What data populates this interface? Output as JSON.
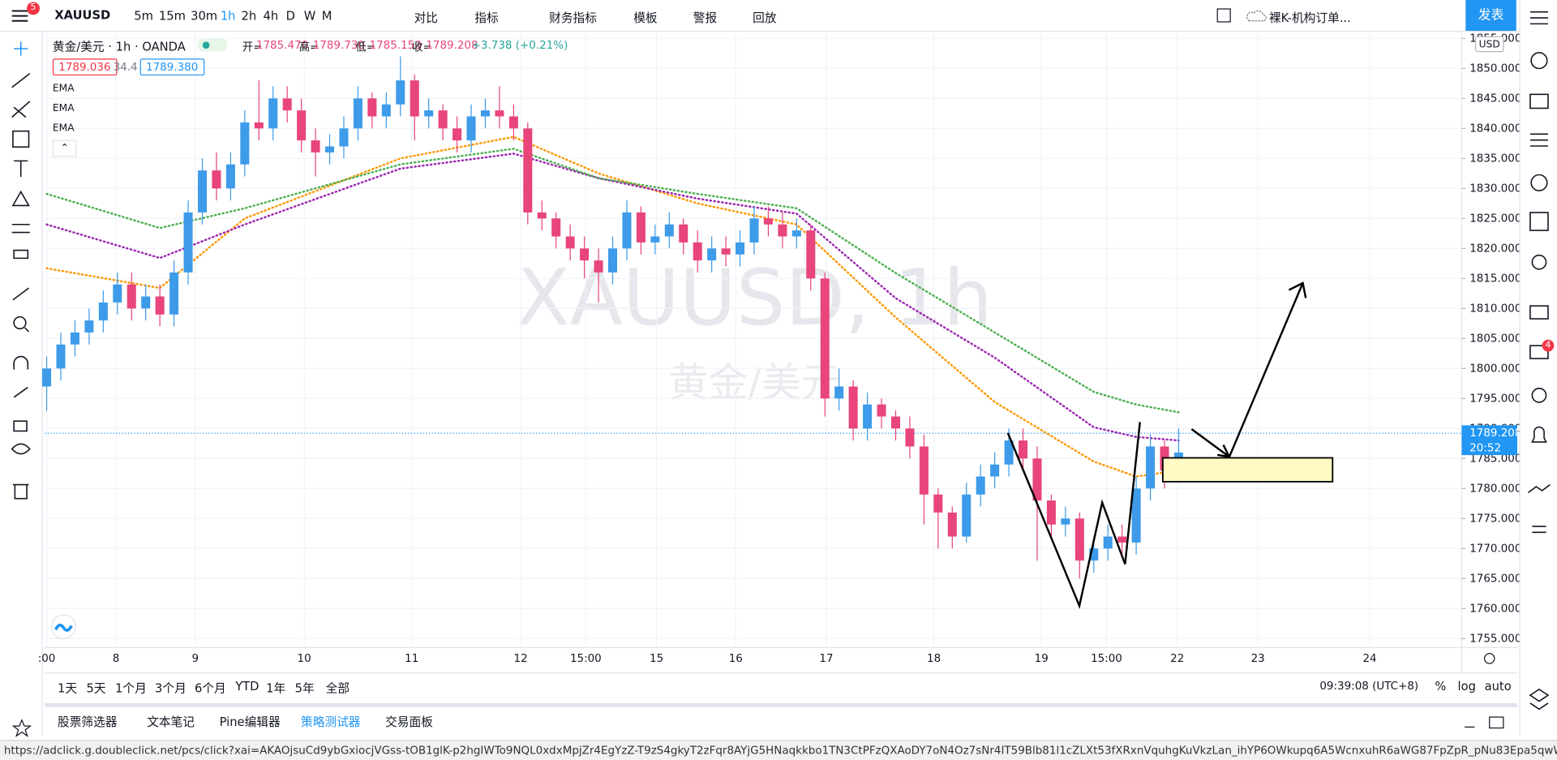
{
  "toolbar": {
    "symbol": "XAUUSD",
    "notification_count": "5",
    "intervals": [
      "5m",
      "15m",
      "30m",
      "1h",
      "2h",
      "4h",
      "D",
      "W",
      "M"
    ],
    "buttons": [
      "对比",
      "指标",
      "财务指标",
      "模板",
      "警报",
      "回放"
    ],
    "layout_name": "裸K-机构订单...",
    "publish": "发表"
  },
  "legend": {
    "title": "黄金/美元 · 1h · OANDA",
    "ohlc": [
      {
        "label": "开=",
        "value": "1785.470"
      },
      {
        "label": "高=",
        "value": "1789.730"
      },
      {
        "label": "低=",
        "value": "1785.150"
      },
      {
        "label": "收=",
        "value": "1789.208"
      }
    ],
    "change": "+3.738 (+0.21%)",
    "bid": "1789.036",
    "spread": "34.4",
    "ask": "1789.380",
    "indicators": [
      "EMA",
      "EMA",
      "EMA"
    ]
  },
  "sidebar_badge": "4",
  "chart_data": {
    "type": "candlestick",
    "watermark": "XAUUSD, 1h",
    "watermark_sub": "黄金/美元",
    "currency": "USD",
    "up_color": "#3d9be9",
    "down_color": "#e8457a",
    "candles": {
      "open": [
        1797,
        1800,
        1804,
        1806,
        1808,
        1811,
        1814,
        1810,
        1812,
        1809,
        1816,
        1826,
        1833,
        1830,
        1834,
        1841,
        1840,
        1845,
        1843,
        1838,
        1836,
        1837,
        1840,
        1845,
        1842,
        1844,
        1848,
        1842,
        1843,
        1840,
        1838,
        1842,
        1843,
        1842,
        1840,
        1826,
        1825,
        1822,
        1820,
        1818,
        1816,
        1820,
        1826,
        1821,
        1822,
        1824,
        1821,
        1818,
        1820,
        1819,
        1821,
        1825,
        1824,
        1822,
        1823,
        1815,
        1795,
        1797,
        1790,
        1794,
        1792,
        1790,
        1787,
        1779,
        1776,
        1772,
        1779,
        1782,
        1784,
        1788,
        1785,
        1778,
        1774,
        1775,
        1768,
        1770,
        1772,
        1771,
        1780,
        1787,
        1783
      ],
      "high": [
        1802,
        1806,
        1808,
        1810,
        1813,
        1816,
        1816,
        1814,
        1814,
        1818,
        1828,
        1835,
        1836,
        1836,
        1843,
        1848,
        1847,
        1847,
        1845,
        1840,
        1839,
        1842,
        1847,
        1846,
        1846,
        1852,
        1849,
        1845,
        1844,
        1842,
        1844,
        1845,
        1847,
        1844,
        1841,
        1828,
        1826,
        1824,
        1822,
        1820,
        1822,
        1828,
        1827,
        1824,
        1826,
        1825,
        1823,
        1822,
        1822,
        1823,
        1827,
        1827,
        1826,
        1825,
        1824,
        1816,
        1800,
        1798,
        1796,
        1795,
        1793,
        1792,
        1789,
        1780,
        1777,
        1781,
        1784,
        1786,
        1790,
        1790,
        1787,
        1779,
        1777,
        1776,
        1772,
        1774,
        1774,
        1782,
        1789,
        1788,
        1790
      ],
      "low": [
        1793,
        1798,
        1802,
        1804,
        1806,
        1809,
        1808,
        1808,
        1807,
        1807,
        1814,
        1824,
        1828,
        1828,
        1832,
        1838,
        1838,
        1841,
        1836,
        1832,
        1834,
        1835,
        1838,
        1840,
        1840,
        1842,
        1838,
        1840,
        1838,
        1836,
        1836,
        1840,
        1840,
        1838,
        1824,
        1823,
        1820,
        1818,
        1815,
        1811,
        1814,
        1818,
        1819,
        1819,
        1820,
        1819,
        1816,
        1816,
        1817,
        1817,
        1819,
        1822,
        1820,
        1820,
        1813,
        1792,
        1793,
        1788,
        1788,
        1790,
        1788,
        1785,
        1774,
        1770,
        1770,
        1771,
        1777,
        1780,
        1782,
        1783,
        1768,
        1772,
        1772,
        1765,
        1766,
        1768,
        1769,
        1769,
        1778,
        1780,
        1781
      ],
      "close": [
        1800,
        1804,
        1806,
        1808,
        1811,
        1814,
        1810,
        1812,
        1809,
        1816,
        1826,
        1833,
        1830,
        1834,
        1841,
        1840,
        1845,
        1843,
        1838,
        1836,
        1837,
        1840,
        1845,
        1842,
        1844,
        1848,
        1842,
        1843,
        1840,
        1838,
        1842,
        1843,
        1842,
        1840,
        1826,
        1825,
        1822,
        1820,
        1818,
        1816,
        1820,
        1826,
        1821,
        1822,
        1824,
        1821,
        1818,
        1820,
        1819,
        1821,
        1825,
        1824,
        1822,
        1823,
        1815,
        1795,
        1797,
        1790,
        1794,
        1792,
        1790,
        1787,
        1779,
        1776,
        1772,
        1779,
        1782,
        1784,
        1788,
        1785,
        1778,
        1774,
        1775,
        1768,
        1770,
        1772,
        1771,
        1780,
        1787,
        1783,
        1786
      ]
    },
    "series": [
      {
        "name": "EMA",
        "color": "#ff9800",
        "x": [
          0,
          8,
          14,
          25,
          33,
          39,
          46,
          53,
          60,
          67,
          74,
          77,
          80
        ],
        "values": [
          1816.7,
          1813.4,
          1825,
          1835,
          1838.6,
          1832.5,
          1827.5,
          1824,
          1808.5,
          1794.4,
          1784.5,
          1782,
          1783
        ]
      },
      {
        "name": "EMA",
        "color": "#9c27b0",
        "x": [
          0,
          8,
          14,
          25,
          33,
          39,
          46,
          53,
          60,
          67,
          74,
          77,
          80
        ],
        "values": [
          1824,
          1818.4,
          1824,
          1833.3,
          1835.8,
          1831.7,
          1828.3,
          1825.8,
          1811.7,
          1801.8,
          1790.2,
          1788.6,
          1788
        ]
      },
      {
        "name": "EMA",
        "color": "#4caf50",
        "x": [
          0,
          8,
          14,
          25,
          33,
          39,
          46,
          53,
          60,
          67,
          74,
          77,
          80
        ],
        "values": [
          1829.1,
          1823.4,
          1826.7,
          1834,
          1836.6,
          1831.7,
          1829.1,
          1826.7,
          1815.9,
          1806,
          1796.1,
          1794,
          1792.7
        ]
      }
    ],
    "xlim": [
      -0.14,
      100
    ],
    "ylim": [
      1753.5,
      1856.1
    ],
    "yticks": [
      {
        "value": 1755,
        "label": "1755.000"
      },
      {
        "value": 1760,
        "label": "1760.000"
      },
      {
        "value": 1765,
        "label": "1765.000"
      },
      {
        "value": 1770,
        "label": "1770.000"
      },
      {
        "value": 1775,
        "label": "1775.000"
      },
      {
        "value": 1780,
        "label": "1780.000"
      },
      {
        "value": 1785,
        "label": "1785.000"
      },
      {
        "value": 1790,
        "label": "1790.000"
      },
      {
        "value": 1795,
        "label": "1795.000"
      },
      {
        "value": 1800,
        "label": "1800.000"
      },
      {
        "value": 1805,
        "label": "1805.000"
      },
      {
        "value": 1810,
        "label": "1810.000"
      },
      {
        "value": 1815,
        "label": "1815.000"
      },
      {
        "value": 1820,
        "label": "1820.000"
      },
      {
        "value": 1825,
        "label": "1825.000"
      },
      {
        "value": 1830,
        "label": "1830.000"
      },
      {
        "value": 1835,
        "label": "1835.000"
      },
      {
        "value": 1840,
        "label": "1840.000"
      },
      {
        "value": 1845,
        "label": "1845.000"
      },
      {
        "value": 1850,
        "label": "1850.000"
      },
      {
        "value": 1855,
        "label": "1855.000"
      }
    ],
    "xticks": [
      {
        "value": 0,
        "label": ":00"
      },
      {
        "value": 4.9,
        "label": "8"
      },
      {
        "value": 10.5,
        "label": "9"
      },
      {
        "value": 18.2,
        "label": "10"
      },
      {
        "value": 25.8,
        "label": "11"
      },
      {
        "value": 33.5,
        "label": "12"
      },
      {
        "value": 38.1,
        "label": "15:00"
      },
      {
        "value": 43.1,
        "label": "15"
      },
      {
        "value": 48.7,
        "label": "16"
      },
      {
        "value": 55.1,
        "label": "17"
      },
      {
        "value": 62.7,
        "label": "18"
      },
      {
        "value": 70.3,
        "label": "19"
      },
      {
        "value": 74.9,
        "label": "15:00"
      },
      {
        "value": 79.9,
        "label": "22"
      },
      {
        "value": 85.6,
        "label": "23"
      },
      {
        "value": 93.5,
        "label": "24"
      }
    ],
    "last_price": {
      "value": 1789.208,
      "label": "1789.208"
    },
    "countdown": "20:52"
  },
  "bottom_bar": {
    "ranges": [
      "1天",
      "5天",
      "1个月",
      "3个月",
      "6个月",
      "YTD",
      "1年",
      "5年",
      "全部"
    ],
    "clock": "09:39:08 (UTC+8)",
    "options": [
      "%",
      "log",
      "auto"
    ]
  },
  "tabs": [
    "股票筛选器",
    "文本笔记",
    "Pine编辑器",
    "策略测试器",
    "交易面板"
  ],
  "status_url": "https://adclick.g.doubleclick.net/pcs/click?xai=AKAOjsuCd9ybGxiocjVGss-tOB1glK-p2hgIWTo9NQL0xdxMpjZr4EgYzZ-T9zS4gkyT2zFqr8AYjG5HNaqkkbo1TN3CtPFzQXAoDY7oN4Oz7sNr4IT59Blb81l1cZLXt53fXRxnVquhgKuVkzLan_ihYP6OWkupq6A5WcnxuhR6aWG87FpZpR_pNu83Epa5qwWyrn-RcDyPD7DWmRGWS5osUlMwZ..."
}
